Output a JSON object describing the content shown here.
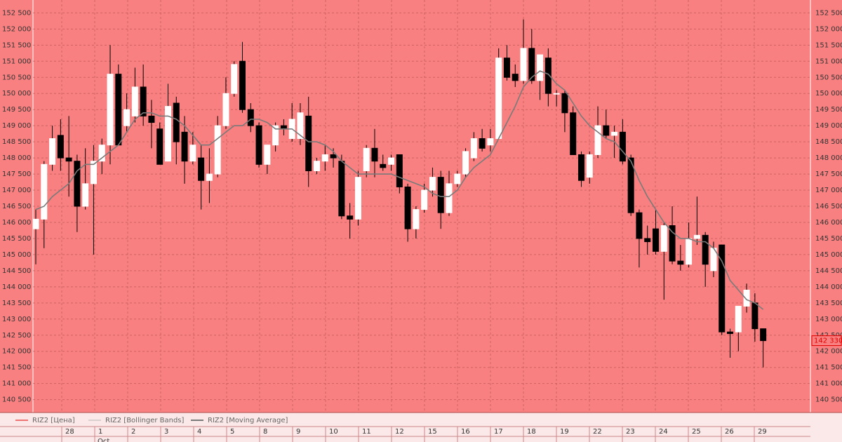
{
  "chart_data": {
    "type": "candlestick",
    "ylim": [
      140100,
      152900
    ],
    "yticks": [
      {
        "value": 140500,
        "label": "140 500"
      },
      {
        "value": 141000,
        "label": "141 000"
      },
      {
        "value": 141500,
        "label": "141 500"
      },
      {
        "value": 142000,
        "label": "142 000"
      },
      {
        "value": 142500,
        "label": "142 500"
      },
      {
        "value": 143000,
        "label": "143 000"
      },
      {
        "value": 143500,
        "label": "143 500"
      },
      {
        "value": 144000,
        "label": "144 000"
      },
      {
        "value": 144500,
        "label": "144 500"
      },
      {
        "value": 145000,
        "label": "145 000"
      },
      {
        "value": 145500,
        "label": "145 500"
      },
      {
        "value": 146000,
        "label": "146 000"
      },
      {
        "value": 146500,
        "label": "146 500"
      },
      {
        "value": 147000,
        "label": "147 000"
      },
      {
        "value": 147500,
        "label": "147 500"
      },
      {
        "value": 148000,
        "label": "148 000"
      },
      {
        "value": 148500,
        "label": "148 500"
      },
      {
        "value": 149000,
        "label": "149 000"
      },
      {
        "value": 149500,
        "label": "149 500"
      },
      {
        "value": 150000,
        "label": "150 000"
      },
      {
        "value": 150500,
        "label": "150 500"
      },
      {
        "value": 151000,
        "label": "151 000"
      },
      {
        "value": 151500,
        "label": "151 500"
      },
      {
        "value": 152000,
        "label": "152 000"
      },
      {
        "value": 152500,
        "label": "152 500"
      }
    ],
    "grid": true,
    "x_labels": [
      "28",
      "1",
      "2",
      "3",
      "4",
      "5",
      "8",
      "9",
      "10",
      "11",
      "12",
      "15",
      "16",
      "17",
      "18",
      "19",
      "22",
      "23",
      "24",
      "25",
      "26",
      "29"
    ],
    "month_label": "Oct",
    "last_price": {
      "value": 142330,
      "label": "142 330"
    },
    "series": [
      {
        "name": "RIZ2 [Цена]",
        "color": "#e00000",
        "open": [
          145800,
          146100,
          147800,
          148700,
          148000,
          147900,
          146500,
          147200,
          147900,
          148400,
          150600,
          149000,
          149300,
          150200,
          149300,
          148900,
          147900,
          149700,
          148800,
          147900,
          148000,
          147300,
          147500,
          149000,
          150000,
          151000,
          149500,
          149000,
          147800,
          148400,
          149000,
          148600,
          148600,
          149300,
          147600,
          147900,
          148100,
          147900,
          146200,
          146100,
          147600,
          148300,
          147800,
          147800,
          148100,
          147100,
          145800,
          146400,
          147000,
          147400,
          146300,
          147200,
          147500,
          148000,
          148600,
          148400,
          148600,
          151100,
          150600,
          150400,
          151400,
          150400,
          151100,
          150000,
          150000,
          149400,
          148100,
          147400,
          148100,
          149000,
          148700,
          148800,
          148000,
          146300,
          145500,
          145800,
          145100,
          145900,
          144800,
          144700,
          145500,
          145600,
          144500,
          145300,
          142600,
          142600,
          143400,
          143500,
          142700
        ],
        "high": [
          146400,
          147900,
          149000,
          149200,
          149300,
          148100,
          148300,
          148400,
          148600,
          151500,
          150900,
          150000,
          150800,
          150900,
          149800,
          149100,
          150300,
          149900,
          149300,
          148800,
          148400,
          148300,
          149300,
          150500,
          151000,
          151600,
          149700,
          149100,
          148400,
          149100,
          149200,
          149700,
          149700,
          149900,
          148000,
          148400,
          148300,
          148100,
          146600,
          147600,
          148400,
          148900,
          148100,
          148100,
          148100,
          147200,
          146500,
          147200,
          147700,
          147600,
          147600,
          147600,
          148300,
          148800,
          148900,
          148900,
          151400,
          151500,
          150900,
          152300,
          152000,
          151200,
          151400,
          150100,
          150100,
          149600,
          148200,
          148200,
          149600,
          149500,
          149000,
          149200,
          148100,
          146400,
          145900,
          146400,
          146000,
          146500,
          145300,
          146000,
          146800,
          145700,
          145400,
          145300,
          142700,
          143400,
          144100,
          143800,
          142700
        ],
        "low": [
          144700,
          145200,
          147600,
          147600,
          146800,
          145700,
          146400,
          145000,
          147500,
          147800,
          148400,
          148800,
          149100,
          149000,
          148300,
          147800,
          147900,
          147800,
          147200,
          147800,
          146400,
          146600,
          147400,
          148900,
          149900,
          149400,
          148800,
          147700,
          147500,
          148200,
          148700,
          148500,
          148400,
          147100,
          147500,
          147600,
          147700,
          146100,
          145500,
          145900,
          147400,
          147400,
          147600,
          147600,
          146900,
          145400,
          145500,
          146300,
          146800,
          145800,
          146200,
          147100,
          147400,
          147900,
          148200,
          148200,
          148600,
          150400,
          150200,
          150300,
          150300,
          149800,
          149600,
          149600,
          148800,
          148100,
          147100,
          147200,
          148000,
          148600,
          148000,
          147800,
          146200,
          144600,
          145000,
          145000,
          143600,
          144700,
          144500,
          144600,
          145300,
          144000,
          144300,
          142500,
          141800,
          142000,
          143200,
          142300,
          141500
        ],
        "close": [
          146100,
          147800,
          148600,
          148000,
          147900,
          146500,
          147200,
          147900,
          148400,
          150600,
          148400,
          149500,
          150200,
          149300,
          149100,
          147800,
          149600,
          148500,
          147900,
          148400,
          147300,
          147500,
          149000,
          150000,
          150900,
          149500,
          149000,
          147800,
          148400,
          149000,
          148900,
          149200,
          149400,
          147600,
          147900,
          148100,
          148000,
          146200,
          146100,
          147400,
          148300,
          147900,
          147700,
          148000,
          147100,
          145800,
          146400,
          147000,
          147400,
          146300,
          147200,
          147500,
          148200,
          148600,
          148300,
          148600,
          151100,
          150500,
          150400,
          151400,
          150400,
          151200,
          150000,
          150000,
          149400,
          148100,
          147300,
          148100,
          149000,
          148700,
          148800,
          147900,
          146300,
          145500,
          145400,
          145100,
          145900,
          144800,
          144700,
          145500,
          145600,
          144700,
          145200,
          142600,
          142550,
          143400,
          143900,
          142700,
          142330
        ]
      },
      {
        "name": "RIZ2 [Bollinger Bands]",
        "color": "#b8b8b8"
      },
      {
        "name": "RIZ2 [Moving Average]",
        "color": "#7a7a7a",
        "values": [
          146400,
          146500,
          146800,
          147000,
          147200,
          147600,
          147800,
          147800,
          148000,
          148200,
          148400,
          148800,
          149200,
          149400,
          149400,
          149300,
          149300,
          149200,
          149000,
          148700,
          148400,
          148400,
          148600,
          148800,
          149000,
          149000,
          149200,
          149200,
          149100,
          148900,
          148900,
          148900,
          148700,
          148500,
          148500,
          148400,
          148200,
          147900,
          147700,
          147500,
          147500,
          147500,
          147500,
          147500,
          147400,
          147300,
          147200,
          147100,
          146900,
          146800,
          146800,
          147000,
          147400,
          147700,
          147900,
          148100,
          148600,
          149100,
          149600,
          150200,
          150500,
          150700,
          150600,
          150300,
          150100,
          149700,
          149300,
          149000,
          148800,
          148600,
          148500,
          148200,
          147900,
          147300,
          146800,
          146400,
          146000,
          145700,
          145500,
          145500,
          145400,
          145400,
          145200,
          144800,
          144200,
          143900,
          143600,
          143500,
          143300
        ]
      }
    ]
  }
}
